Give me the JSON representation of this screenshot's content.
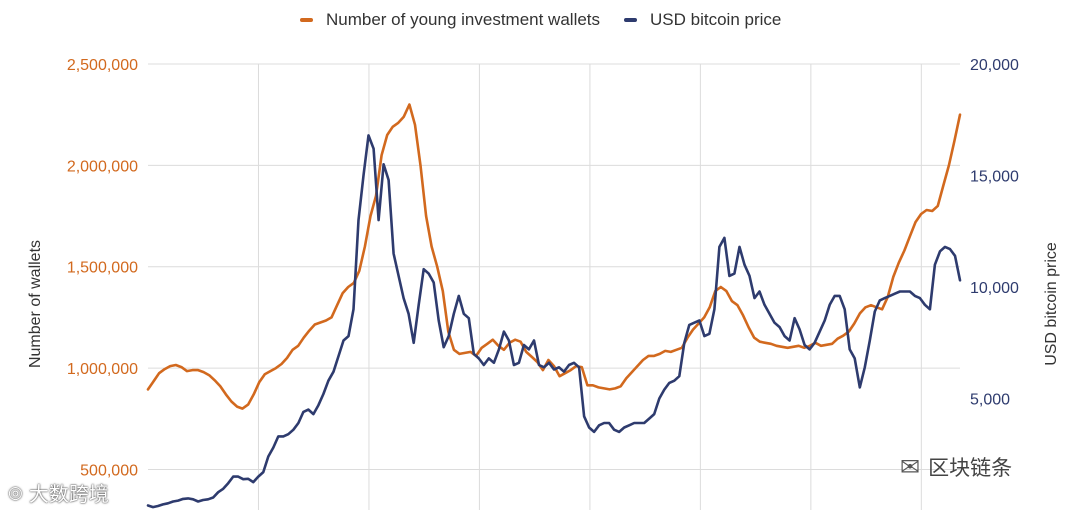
{
  "chart_data": {
    "type": "line",
    "legend_position": "top-center",
    "series": [
      {
        "name": "Number of young investment wallets",
        "axis": "left",
        "color": "#d2691e",
        "values": [
          895000,
          935000,
          975000,
          995000,
          1010000,
          1015000,
          1005000,
          985000,
          990000,
          990000,
          980000,
          965000,
          940000,
          910000,
          870000,
          835000,
          810000,
          800000,
          820000,
          870000,
          930000,
          970000,
          985000,
          1000000,
          1020000,
          1050000,
          1090000,
          1110000,
          1150000,
          1185000,
          1215000,
          1225000,
          1235000,
          1250000,
          1310000,
          1370000,
          1400000,
          1420000,
          1480000,
          1600000,
          1750000,
          1850000,
          2050000,
          2150000,
          2190000,
          2210000,
          2240000,
          2300000,
          2200000,
          2000000,
          1750000,
          1600000,
          1500000,
          1380000,
          1180000,
          1090000,
          1070000,
          1075000,
          1080000,
          1060000,
          1100000,
          1120000,
          1140000,
          1110000,
          1090000,
          1125000,
          1140000,
          1130000,
          1080000,
          1055000,
          1030000,
          990000,
          1040000,
          1010000,
          960000,
          975000,
          990000,
          1010000,
          1005000,
          915000,
          915000,
          905000,
          900000,
          895000,
          900000,
          910000,
          950000,
          980000,
          1010000,
          1040000,
          1060000,
          1060000,
          1070000,
          1085000,
          1080000,
          1090000,
          1100000,
          1150000,
          1190000,
          1220000,
          1250000,
          1300000,
          1380000,
          1400000,
          1380000,
          1330000,
          1310000,
          1260000,
          1200000,
          1150000,
          1130000,
          1125000,
          1120000,
          1110000,
          1105000,
          1100000,
          1105000,
          1110000,
          1100000,
          1110000,
          1125000,
          1110000,
          1115000,
          1120000,
          1145000,
          1160000,
          1180000,
          1220000,
          1270000,
          1300000,
          1310000,
          1300000,
          1290000,
          1350000,
          1450000,
          1520000,
          1580000,
          1650000,
          1720000,
          1760000,
          1780000,
          1775000,
          1800000,
          1900000,
          2000000,
          2120000,
          2250000
        ]
      },
      {
        "name": "USD bitcoin price",
        "axis": "right",
        "color": "#2e3b6e",
        "values": [
          200,
          130,
          180,
          250,
          300,
          380,
          420,
          500,
          520,
          480,
          380,
          450,
          480,
          560,
          800,
          950,
          1200,
          1500,
          1500,
          1380,
          1400,
          1250,
          1500,
          1700,
          2400,
          2800,
          3300,
          3300,
          3400,
          3600,
          3900,
          4400,
          4500,
          4300,
          4700,
          5200,
          5800,
          6200,
          6900,
          7600,
          7800,
          9000,
          13000,
          15000,
          16800,
          16200,
          13000,
          15500,
          14800,
          11500,
          10500,
          9500,
          8800,
          7500,
          9200,
          10800,
          10600,
          10200,
          8500,
          7300,
          7800,
          8800,
          9600,
          8800,
          8600,
          7000,
          6800,
          6500,
          6800,
          6600,
          7200,
          8000,
          7600,
          6500,
          6600,
          7400,
          7200,
          7600,
          6500,
          6400,
          6600,
          6300,
          6400,
          6200,
          6500,
          6600,
          6400,
          4200,
          3700,
          3500,
          3800,
          3900,
          3900,
          3600,
          3500,
          3700,
          3800,
          3900,
          3900,
          3900,
          4100,
          4300,
          5000,
          5400,
          5700,
          5800,
          6000,
          7500,
          8300,
          8400,
          8500,
          7800,
          7900,
          9000,
          11800,
          12200,
          10500,
          10600,
          11800,
          11000,
          10500,
          9500,
          9800,
          9200,
          8800,
          8400,
          8200,
          7800,
          7600,
          8600,
          8100,
          7400,
          7200,
          7500,
          8000,
          8500,
          9200,
          9600,
          9600,
          9000,
          7200,
          6800,
          5500,
          6400,
          7600,
          8900,
          9400,
          9500,
          9600,
          9700,
          9800,
          9800,
          9800,
          9600,
          9500,
          9200,
          9000,
          11000,
          11600,
          11800,
          11700,
          11400,
          10300
        ]
      }
    ],
    "left_axis": {
      "title": "Number of wallets",
      "range": [
        300000,
        2500000
      ],
      "ticks": [
        500000,
        1000000,
        1500000,
        2000000,
        2500000
      ],
      "tick_labels": [
        "500,000",
        "1,000,000",
        "1,500,000",
        "2,000,000",
        "2,500,000"
      ],
      "color": "#d2691e"
    },
    "right_axis": {
      "title": "USD bitcoin price",
      "range": [
        0,
        20000
      ],
      "ticks": [
        5000,
        10000,
        15000,
        20000
      ],
      "tick_labels": [
        "5,000",
        "10,000",
        "15,000",
        "20,000"
      ],
      "color": "#2e3b6e"
    },
    "grid": true,
    "vertical_gridlines": 7
  },
  "watermarks": {
    "left": "大数跨境",
    "right": "区块链条"
  }
}
